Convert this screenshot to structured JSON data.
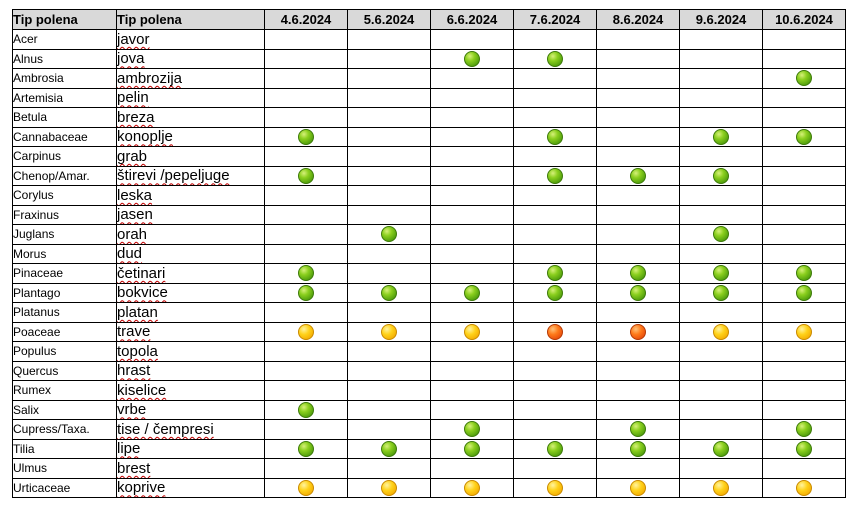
{
  "headers": {
    "latin": "Tip polena",
    "local": "Tip polena",
    "dates": [
      "4.6.2024",
      "5.6.2024",
      "6.6.2024",
      "7.6.2024",
      "8.6.2024",
      "9.6.2024",
      "10.6.2024"
    ]
  },
  "level_colors": {
    "green": "#6ab416",
    "yellow": "#ffcc00",
    "orange": "#f25c0e"
  },
  "rows": [
    {
      "latin": "Acer",
      "local": "javor",
      "levels": [
        "",
        "",
        "",
        "",
        "",
        "",
        ""
      ]
    },
    {
      "latin": "Alnus",
      "local": "jova",
      "levels": [
        "",
        "",
        "green",
        "green",
        "",
        "",
        ""
      ]
    },
    {
      "latin": "Ambrosia",
      "local": "ambrozija",
      "levels": [
        "",
        "",
        "",
        "",
        "",
        "",
        "green"
      ]
    },
    {
      "latin": "Artemisia",
      "local": "pelin",
      "levels": [
        "",
        "",
        "",
        "",
        "",
        "",
        ""
      ]
    },
    {
      "latin": "Betula",
      "local": "breza",
      "levels": [
        "",
        "",
        "",
        "",
        "",
        "",
        ""
      ]
    },
    {
      "latin": "Cannabaceae",
      "local": "konoplje",
      "levels": [
        "green",
        "",
        "",
        "green",
        "",
        "green",
        "green"
      ]
    },
    {
      "latin": "Carpinus",
      "local": "grab",
      "levels": [
        "",
        "",
        "",
        "",
        "",
        "",
        ""
      ]
    },
    {
      "latin": "Chenop/Amar.",
      "local": "štirevi /pepeljuge",
      "levels": [
        "green",
        "",
        "",
        "green",
        "green",
        "green",
        ""
      ]
    },
    {
      "latin": "Corylus",
      "local": "leska",
      "levels": [
        "",
        "",
        "",
        "",
        "",
        "",
        ""
      ]
    },
    {
      "latin": "Fraxinus",
      "local": "jasen",
      "levels": [
        "",
        "",
        "",
        "",
        "",
        "",
        ""
      ]
    },
    {
      "latin": "Juglans",
      "local": "orah",
      "levels": [
        "",
        "green",
        "",
        "",
        "",
        "green",
        ""
      ]
    },
    {
      "latin": "Morus",
      "local": "dud",
      "levels": [
        "",
        "",
        "",
        "",
        "",
        "",
        ""
      ]
    },
    {
      "latin": "Pinaceae",
      "local": "četinari",
      "levels": [
        "green",
        "",
        "",
        "green",
        "green",
        "green",
        "green"
      ]
    },
    {
      "latin": "Plantago",
      "local": "bokvice",
      "levels": [
        "green",
        "green",
        "green",
        "green",
        "green",
        "green",
        "green"
      ]
    },
    {
      "latin": "Platanus",
      "local": "platan",
      "levels": [
        "",
        "",
        "",
        "",
        "",
        "",
        ""
      ]
    },
    {
      "latin": "Poaceae",
      "local": "trave",
      "levels": [
        "yellow",
        "yellow",
        "yellow",
        "orange",
        "orange",
        "yellow",
        "yellow"
      ]
    },
    {
      "latin": "Populus",
      "local": "topola",
      "levels": [
        "",
        "",
        "",
        "",
        "",
        "",
        ""
      ]
    },
    {
      "latin": "Quercus",
      "local": "hrast",
      "levels": [
        "",
        "",
        "",
        "",
        "",
        "",
        ""
      ]
    },
    {
      "latin": "Rumex",
      "local": "kiselice",
      "levels": [
        "",
        "",
        "",
        "",
        "",
        "",
        ""
      ]
    },
    {
      "latin": "Salix",
      "local": "vrbe",
      "levels": [
        "green",
        "",
        "",
        "",
        "",
        "",
        ""
      ]
    },
    {
      "latin": "Cupress/Taxa.",
      "local": "tise / čempresi",
      "levels": [
        "",
        "",
        "green",
        "",
        "green",
        "",
        "green"
      ]
    },
    {
      "latin": "Tilia",
      "local": "lipe",
      "levels": [
        "green",
        "green",
        "green",
        "green",
        "green",
        "green",
        "green"
      ]
    },
    {
      "latin": "Ulmus",
      "local": "brest",
      "levels": [
        "",
        "",
        "",
        "",
        "",
        "",
        ""
      ]
    },
    {
      "latin": "Urticaceae",
      "local": "koprive",
      "levels": [
        "yellow",
        "yellow",
        "yellow",
        "yellow",
        "yellow",
        "yellow",
        "yellow"
      ]
    }
  ]
}
